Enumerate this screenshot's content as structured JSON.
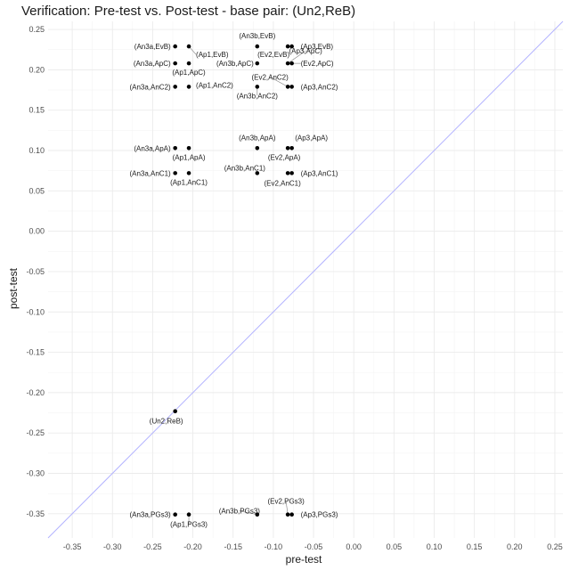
{
  "chart_data": {
    "type": "scatter",
    "title": "Verification: Pre-test vs. Post-test - base pair: (Un2,ReB)",
    "xlabel": "pre-test",
    "ylabel": "post-test",
    "xlim": [
      -0.38,
      0.26
    ],
    "ylim": [
      -0.38,
      0.26
    ],
    "xticks": [
      -0.35,
      -0.3,
      -0.25,
      -0.2,
      -0.15,
      -0.1,
      -0.05,
      0.0,
      0.05,
      0.1,
      0.15,
      0.2,
      0.25
    ],
    "yticks": [
      -0.35,
      -0.3,
      -0.25,
      -0.2,
      -0.15,
      -0.1,
      -0.05,
      0.0,
      0.05,
      0.1,
      0.15,
      0.2,
      0.25
    ],
    "xtick_labels": [
      "-0.35",
      "-0.30",
      "-0.25",
      "-0.20",
      "-0.15",
      "-0.10",
      "-0.05",
      "0.00",
      "0.05",
      "0.10",
      "0.15",
      "0.20",
      "0.25"
    ],
    "ytick_labels": [
      "-0.35",
      "-0.30",
      "-0.25",
      "-0.20",
      "-0.15",
      "-0.10",
      "-0.05",
      "0.00",
      "0.05",
      "0.10",
      "0.15",
      "0.20",
      "0.25"
    ],
    "grid": true,
    "reference_line": {
      "type": "identity",
      "color": "#b3b3ff"
    },
    "point_color": "#000000",
    "points": [
      {
        "label": "(An3a,EvB)",
        "x": -0.222,
        "y": 0.229
      },
      {
        "label": "(Ap1,EvB)",
        "x": -0.205,
        "y": 0.229
      },
      {
        "label": "(An3b,EvB)",
        "x": -0.12,
        "y": 0.229
      },
      {
        "label": "(Ev2,EvB)",
        "x": -0.082,
        "y": 0.229
      },
      {
        "label": "(Ap3,EvB)",
        "x": -0.077,
        "y": 0.229
      },
      {
        "label": "(An3a,ApC)",
        "x": -0.222,
        "y": 0.208
      },
      {
        "label": "(Ap1,ApC)",
        "x": -0.205,
        "y": 0.208
      },
      {
        "label": "(An3b,ApC)",
        "x": -0.12,
        "y": 0.208
      },
      {
        "label": "(Ap3,ApC)",
        "x": -0.082,
        "y": 0.208
      },
      {
        "label": "(Ev2,ApC)",
        "x": -0.077,
        "y": 0.208
      },
      {
        "label": "(An3a,AnC2)",
        "x": -0.222,
        "y": 0.179
      },
      {
        "label": "(Ap1,AnC2)",
        "x": -0.205,
        "y": 0.179
      },
      {
        "label": "(An3b,AnC2)",
        "x": -0.12,
        "y": 0.179
      },
      {
        "label": "(Ev2,AnC2)",
        "x": -0.082,
        "y": 0.179
      },
      {
        "label": "(Ap3,AnC2)",
        "x": -0.077,
        "y": 0.179
      },
      {
        "label": "(An3a,ApA)",
        "x": -0.222,
        "y": 0.103
      },
      {
        "label": "(Ap1,ApA)",
        "x": -0.205,
        "y": 0.103
      },
      {
        "label": "(An3b,ApA)",
        "x": -0.12,
        "y": 0.103
      },
      {
        "label": "(Ev2,ApA)",
        "x": -0.082,
        "y": 0.103
      },
      {
        "label": "(Ap3,ApA)",
        "x": -0.077,
        "y": 0.103
      },
      {
        "label": "(An3a,AnC1)",
        "x": -0.222,
        "y": 0.072
      },
      {
        "label": "(Ap1,AnC1)",
        "x": -0.205,
        "y": 0.072
      },
      {
        "label": "(An3b,AnC1)",
        "x": -0.12,
        "y": 0.072
      },
      {
        "label": "(Ev2,AnC1)",
        "x": -0.082,
        "y": 0.072
      },
      {
        "label": "(Ap3,AnC1)",
        "x": -0.077,
        "y": 0.072
      },
      {
        "label": "(Un2,ReB)",
        "x": -0.222,
        "y": -0.223
      },
      {
        "label": "(An3a,PGs3)",
        "x": -0.222,
        "y": -0.351
      },
      {
        "label": "(Ap1,PGs3)",
        "x": -0.205,
        "y": -0.351
      },
      {
        "label": "(An3b,PGs3)",
        "x": -0.12,
        "y": -0.351
      },
      {
        "label": "(Ev2,PGs3)",
        "x": -0.082,
        "y": -0.351
      },
      {
        "label": "(Ap3,PGs3)",
        "x": -0.077,
        "y": -0.351
      }
    ]
  }
}
